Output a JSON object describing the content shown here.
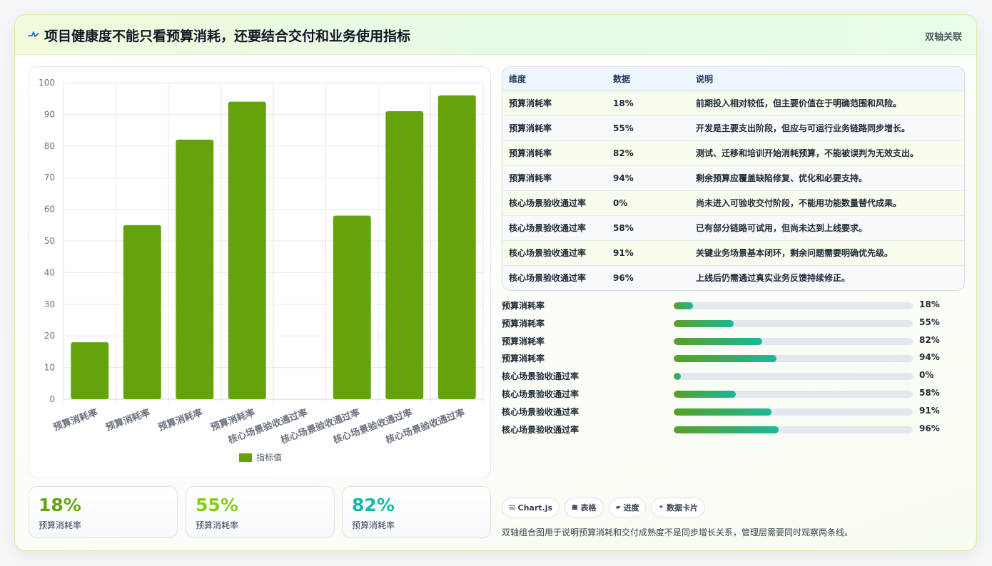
{
  "header": {
    "title": "项目健康度不能只看预算消耗，还要结合交付和业务使用指标",
    "tag": "双轴关联",
    "icon": "pulse-icon"
  },
  "colors": {
    "bar": "#65a30d",
    "kpi_1": "#65a30d",
    "kpi_2": "#84cc16",
    "kpi_3": "#14b8a6"
  },
  "chart_data": {
    "type": "bar",
    "categories": [
      "预算消耗率",
      "预算消耗率",
      "预算消耗率",
      "预算消耗率",
      "核心场景验收通过率",
      "核心场景验收通过率",
      "核心场景验收通过率",
      "核心场景验收通过率"
    ],
    "series": [
      {
        "name": "指标值",
        "values": [
          18,
          55,
          82,
          94,
          0,
          58,
          91,
          96
        ]
      }
    ],
    "ylim": [
      0,
      100
    ],
    "yticks": [
      0,
      10,
      20,
      30,
      40,
      50,
      60,
      70,
      80,
      90,
      100
    ],
    "grid": true,
    "legend": "bottom"
  },
  "table": {
    "headers": [
      "维度",
      "数据",
      "说明"
    ],
    "rows": [
      [
        "预算消耗率",
        "18%",
        "前期投入相对较低，但主要价值在于明确范围和风险。"
      ],
      [
        "预算消耗率",
        "55%",
        "开发是主要支出阶段，但应与可运行业务链路同步增长。"
      ],
      [
        "预算消耗率",
        "82%",
        "测试、迁移和培训开始消耗预算，不能被误判为无效支出。"
      ],
      [
        "预算消耗率",
        "94%",
        "剩余预算应覆盖缺陷修复、优化和必要支持。"
      ],
      [
        "核心场景验收通过率",
        "0%",
        "尚未进入可验收交付阶段，不能用功能数量替代成果。"
      ],
      [
        "核心场景验收通过率",
        "58%",
        "已有部分链路可试用，但尚未达到上线要求。"
      ],
      [
        "核心场景验收通过率",
        "91%",
        "关键业务场景基本闭环，剩余问题需要明确优先级。"
      ],
      [
        "核心场景验收通过率",
        "96%",
        "上线后仍需通过真实业务反馈持续修正。"
      ]
    ]
  },
  "progress": [
    {
      "label": "预算消耗率",
      "value_text": "18%",
      "fraction": 0.08
    },
    {
      "label": "预算消耗率",
      "value_text": "55%",
      "fraction": 0.25
    },
    {
      "label": "预算消耗率",
      "value_text": "82%",
      "fraction": 0.37
    },
    {
      "label": "预算消耗率",
      "value_text": "94%",
      "fraction": 0.43
    },
    {
      "label": "核心场景验收通过率",
      "value_text": "0%",
      "fraction": 0.03
    },
    {
      "label": "核心场景验收通过率",
      "value_text": "58%",
      "fraction": 0.26
    },
    {
      "label": "核心场景验收通过率",
      "value_text": "91%",
      "fraction": 0.41
    },
    {
      "label": "核心场景验收通过率",
      "value_text": "96%",
      "fraction": 0.44
    }
  ],
  "kpis": [
    {
      "value": "18%",
      "label": "预算消耗率"
    },
    {
      "value": "55%",
      "label": "预算消耗率"
    },
    {
      "value": "82%",
      "label": "预算消耗率"
    }
  ],
  "chips": [
    {
      "icon": "chart-icon",
      "glyph": "▤",
      "label": "Chart.js"
    },
    {
      "icon": "table-icon",
      "glyph": "■",
      "label": "表格"
    },
    {
      "icon": "progress-icon",
      "glyph": "▰",
      "label": "进度"
    },
    {
      "icon": "sparkle-icon",
      "glyph": "✦",
      "label": "数据卡片"
    }
  ],
  "note": "双轴组合图用于说明预算消耗和交付成熟度不是同步增长关系，管理层需要同时观察两条线。"
}
